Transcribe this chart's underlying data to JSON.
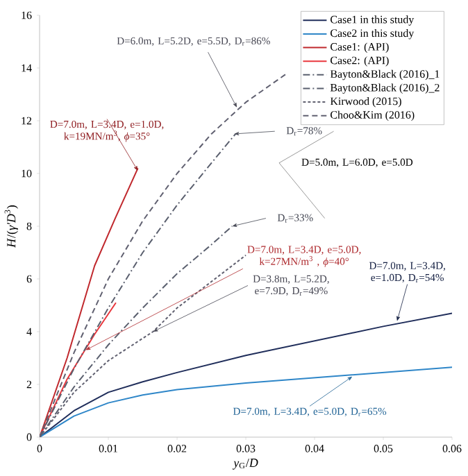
{
  "chart_data": {
    "type": "line",
    "xlabel": "*y*$_{G}$/*D*",
    "ylabel": "*H*/(*γ′D*$^{3}$)",
    "xlim": [
      0,
      0.06
    ],
    "ylim": [
      0,
      16
    ],
    "xticks": [
      0,
      0.01,
      0.02,
      0.03,
      0.04,
      0.05,
      0.06
    ],
    "yticks": [
      0,
      2,
      4,
      6,
      8,
      10,
      12,
      14,
      16
    ],
    "legend": "top right",
    "marker": "none",
    "series": [
      {
        "name": "Case1 in this study",
        "color": "#1f2d5a",
        "line_style": "solid",
        "x": [
          0,
          0.005,
          0.01,
          0.015,
          0.02,
          0.03,
          0.04,
          0.05,
          0.06
        ],
        "values": [
          0,
          1.0,
          1.7,
          2.1,
          2.45,
          3.1,
          3.65,
          4.2,
          4.7
        ]
      },
      {
        "name": "Case2 in this study",
        "color": "#2e86c8",
        "line_style": "solid",
        "x": [
          0,
          0.005,
          0.01,
          0.015,
          0.02,
          0.03,
          0.04,
          0.05,
          0.06
        ],
        "values": [
          0,
          0.8,
          1.3,
          1.6,
          1.8,
          2.05,
          2.25,
          2.45,
          2.65
        ]
      },
      {
        "name": "Case1: (API)",
        "color": "#c0282d",
        "line_style": "solid",
        "x": [
          0,
          0.004,
          0.008,
          0.011,
          0.0143
        ],
        "values": [
          0,
          3.0,
          6.5,
          8.3,
          10.2
        ]
      },
      {
        "name": "Case2: (API)",
        "color": "#e8363c",
        "line_style": "solid",
        "x": [
          0,
          0.004,
          0.008,
          0.0111
        ],
        "values": [
          0,
          2.2,
          3.9,
          5.1
        ]
      },
      {
        "name": "Bayton&Black (2016)_1",
        "color": "#5a5f6e",
        "line_style": "dashdot",
        "x": [
          0,
          0.005,
          0.01,
          0.015,
          0.02,
          0.025,
          0.0285
        ],
        "values": [
          0,
          2.6,
          4.9,
          7.0,
          8.8,
          10.4,
          11.5
        ]
      },
      {
        "name": "Bayton&Black (2016)_2",
        "color": "#5a5f6e",
        "line_style": "dashdot",
        "x": [
          0,
          0.005,
          0.01,
          0.015,
          0.02,
          0.025,
          0.028
        ],
        "values": [
          0,
          1.9,
          3.5,
          4.9,
          6.2,
          7.3,
          8.0
        ]
      },
      {
        "name": "Kirwood (2015)",
        "color": "#606070",
        "line_style": "dotted",
        "x": [
          0,
          0.005,
          0.01,
          0.0165,
          0.02,
          0.025,
          0.03
        ],
        "values": [
          0,
          1.7,
          2.9,
          4.0,
          4.9,
          5.9,
          6.9
        ]
      },
      {
        "name": "Choo&Kim (2016)",
        "color": "#606070",
        "line_style": "dashed",
        "x": [
          0,
          0.005,
          0.01,
          0.015,
          0.02,
          0.025,
          0.03,
          0.036
        ],
        "values": [
          0,
          3.2,
          6.0,
          8.2,
          10.0,
          11.5,
          12.7,
          13.8
        ]
      }
    ],
    "annotations": [
      {
        "text": "D=6.0m, L=5.2D, e=5.5D, D$_{r}$=86%",
        "x": 0.0287,
        "y": 12.5
      },
      {
        "text": "D=7.0m, L=3.4D, e=1.0D, k=19MN/m$^{3}$, *ϕ*=35°",
        "x": 0.0143,
        "y": 10.1
      },
      {
        "text": "D$_{r}$=78%",
        "x": 0.0283,
        "y": 11.5
      },
      "D=5.0m, L=6.0D, e=5.0D",
      {
        "text": "D$_{r}$=33%",
        "x": 0.028,
        "y": 8.0
      },
      {
        "text": "D=7.0m, L=3.4D, e=5.0D, k=27MN/m$^{3}$ , *ϕ*=40°",
        "x": 0.0067,
        "y": 3.3
      },
      {
        "text": "D=3.8m, L=5.2D, e=7.9D, D$_{r}$=49%",
        "x": 0.0165,
        "y": 4.0
      },
      {
        "text": "D=7.0m, L=3.4D, e=1.0D, D$_{r}$=54%",
        "x": 0.052,
        "y": 4.4
      },
      {
        "text": "D=7.0m, L=3.4D, e=5.0D, D$_{r}$=65%",
        "x": 0.0455,
        "y": 2.3
      }
    ]
  }
}
